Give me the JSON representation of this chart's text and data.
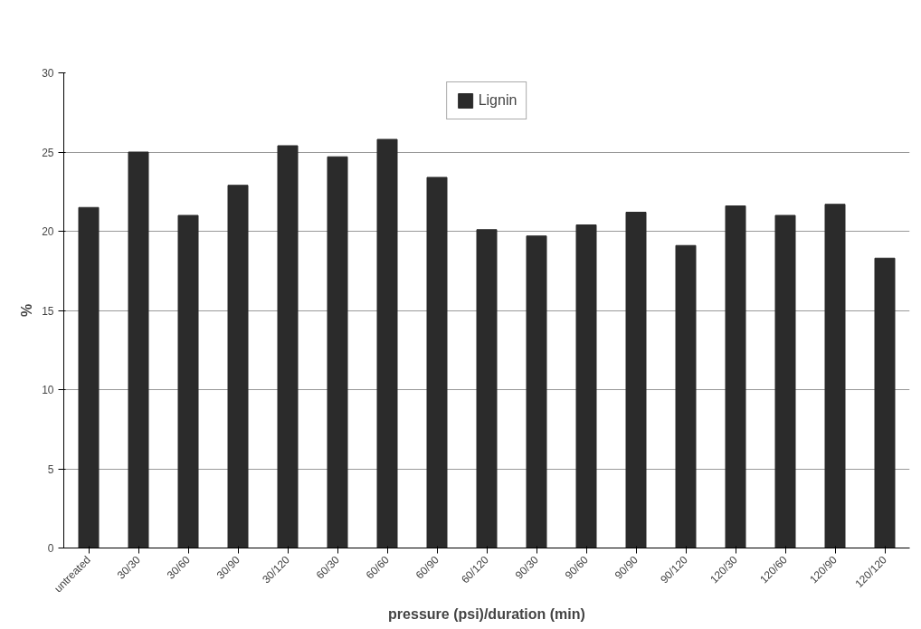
{
  "chart_data": {
    "type": "bar",
    "xlabel": "pressure (psi)/duration (min)",
    "ylabel": "%",
    "categories": [
      "untreated",
      "30/30",
      "30/60",
      "30/90",
      "30/120",
      "60/30",
      "60/60",
      "60/90",
      "60/120",
      "90/30",
      "90/60",
      "90/90",
      "90/120",
      "120/30",
      "120/60",
      "120/90",
      "120/120"
    ],
    "series": [
      {
        "name": "Lignin",
        "color": "#2b2b2b",
        "values": [
          21.5,
          25.0,
          21.0,
          22.9,
          25.4,
          24.7,
          25.8,
          23.4,
          20.1,
          19.7,
          20.4,
          21.2,
          19.1,
          21.6,
          21.0,
          21.7,
          18.3
        ]
      }
    ],
    "ylim": [
      0,
      30
    ],
    "yticks": [
      0,
      5,
      10,
      15,
      20,
      25,
      30
    ],
    "grid": "y",
    "legend": "top"
  }
}
